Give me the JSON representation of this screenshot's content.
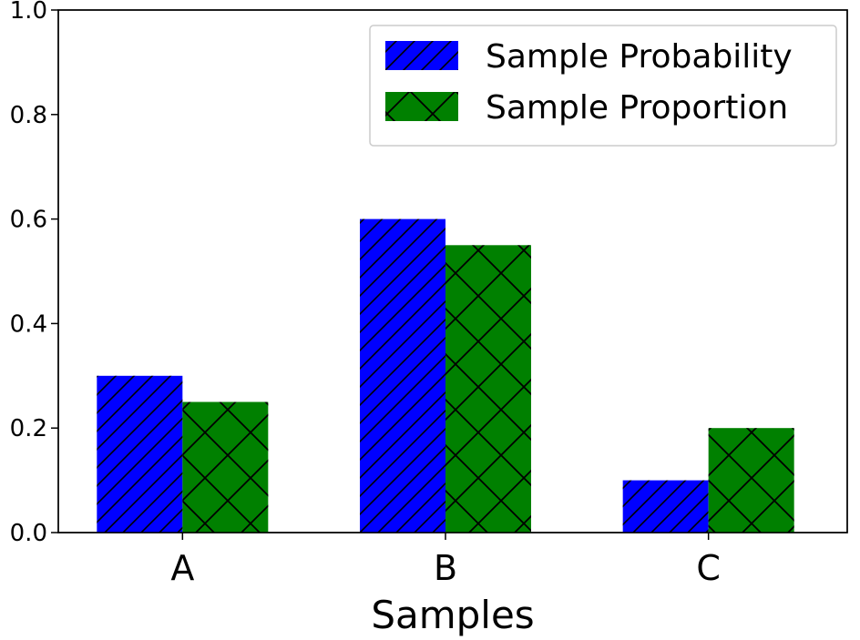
{
  "chart_data": {
    "type": "bar",
    "categories": [
      "A",
      "B",
      "C"
    ],
    "series": [
      {
        "name": "Sample Probability",
        "values": [
          0.3,
          0.6,
          0.1
        ],
        "color": "#0000ff",
        "hatch": "diagonal"
      },
      {
        "name": "Sample Proportion",
        "values": [
          0.25,
          0.55,
          0.2
        ],
        "color": "#008000",
        "hatch": "cross"
      }
    ],
    "xlabel": "Samples",
    "ylabel": "",
    "ylim": [
      0,
      1.0
    ],
    "yticks": [
      "0.0",
      "0.2",
      "0.4",
      "0.6",
      "0.8",
      "1.0"
    ],
    "grid": false,
    "legend_position": "top-right"
  }
}
